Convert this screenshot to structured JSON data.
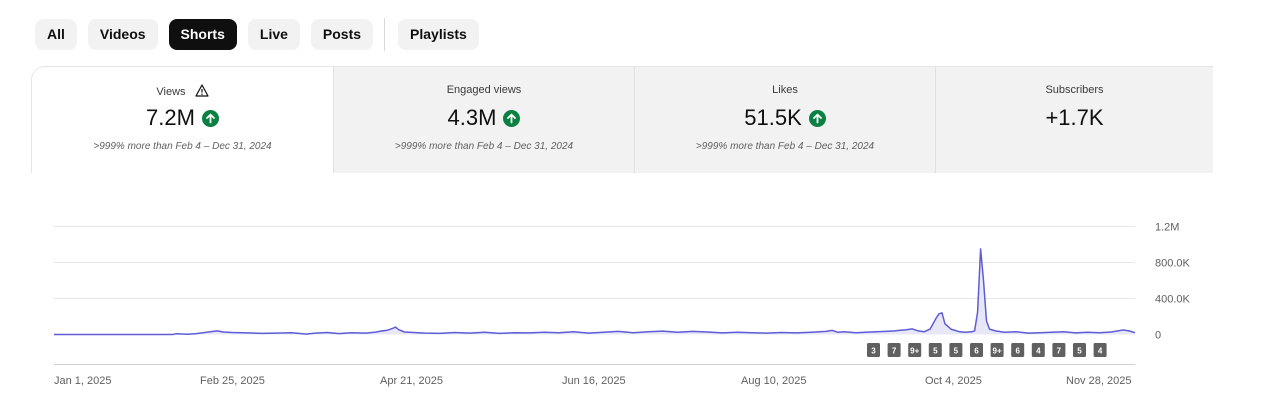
{
  "filters": {
    "chips": [
      "All",
      "Videos",
      "Shorts",
      "Live",
      "Posts",
      "Playlists"
    ],
    "active": "Shorts"
  },
  "metrics": [
    {
      "label": "Views",
      "value": "7.2M",
      "compare": ">999% more than Feb 4 – Dec 31, 2024",
      "trend": "up",
      "warning": true
    },
    {
      "label": "Engaged views",
      "value": "4.3M",
      "compare": ">999% more than Feb 4 – Dec 31, 2024",
      "trend": "up"
    },
    {
      "label": "Likes",
      "value": "51.5K",
      "compare": ">999% more than Feb 4 – Dec 31, 2024",
      "trend": "up"
    },
    {
      "label": "Subscribers",
      "value": "+1.7K",
      "compare": "",
      "trend": ""
    }
  ],
  "colors": {
    "line": "#5f5cd6",
    "area": "#e8e7f8",
    "up": "#0b8043"
  },
  "chart_data": {
    "type": "area",
    "x_tick_labels": [
      "Jan 1, 2025",
      "Feb 25, 2025",
      "Apr 21, 2025",
      "Jun 16, 2025",
      "Aug 10, 2025",
      "Oct 4, 2025",
      "Nov 28, 2025"
    ],
    "y_tick_labels": [
      "0",
      "400.0K",
      "800.0K",
      "1.2M"
    ],
    "ylim": [
      0,
      1200000
    ],
    "grid": true,
    "series": [
      {
        "points": [
          [
            0,
            0
          ],
          [
            40,
            0
          ],
          [
            41,
            8000
          ],
          [
            45,
            3000
          ],
          [
            48,
            10000
          ],
          [
            52,
            28000
          ],
          [
            55,
            40000
          ],
          [
            57,
            28000
          ],
          [
            60,
            22000
          ],
          [
            65,
            18000
          ],
          [
            70,
            12000
          ],
          [
            75,
            15000
          ],
          [
            80,
            20000
          ],
          [
            85,
            5000
          ],
          [
            88,
            15000
          ],
          [
            92,
            22000
          ],
          [
            96,
            10000
          ],
          [
            100,
            20000
          ],
          [
            105,
            15000
          ],
          [
            108,
            24000
          ],
          [
            110,
            38000
          ],
          [
            112,
            45000
          ],
          [
            114,
            68000
          ],
          [
            115,
            82000
          ],
          [
            116,
            55000
          ],
          [
            118,
            28000
          ],
          [
            125,
            15000
          ],
          [
            130,
            12000
          ],
          [
            135,
            22000
          ],
          [
            140,
            15000
          ],
          [
            145,
            25000
          ],
          [
            150,
            12000
          ],
          [
            155,
            20000
          ],
          [
            160,
            18000
          ],
          [
            165,
            25000
          ],
          [
            170,
            20000
          ],
          [
            175,
            30000
          ],
          [
            180,
            15000
          ],
          [
            185,
            25000
          ],
          [
            190,
            35000
          ],
          [
            195,
            20000
          ],
          [
            200,
            30000
          ],
          [
            205,
            38000
          ],
          [
            210,
            25000
          ],
          [
            215,
            35000
          ],
          [
            220,
            28000
          ],
          [
            225,
            18000
          ],
          [
            230,
            25000
          ],
          [
            235,
            20000
          ],
          [
            240,
            15000
          ],
          [
            245,
            22000
          ],
          [
            250,
            18000
          ],
          [
            255,
            25000
          ],
          [
            260,
            35000
          ],
          [
            262,
            45000
          ],
          [
            264,
            25000
          ],
          [
            266,
            30000
          ],
          [
            270,
            20000
          ],
          [
            275,
            28000
          ],
          [
            280,
            35000
          ],
          [
            283,
            40000
          ],
          [
            285,
            48000
          ],
          [
            287,
            52000
          ],
          [
            289,
            62000
          ],
          [
            291,
            40000
          ],
          [
            293,
            30000
          ],
          [
            295,
            60000
          ],
          [
            297,
            180000
          ],
          [
            298,
            230000
          ],
          [
            299,
            240000
          ],
          [
            300,
            120000
          ],
          [
            302,
            60000
          ],
          [
            305,
            30000
          ],
          [
            307,
            25000
          ],
          [
            309,
            30000
          ],
          [
            310,
            40000
          ],
          [
            311,
            250000
          ],
          [
            312,
            950000
          ],
          [
            313,
            600000
          ],
          [
            314,
            150000
          ],
          [
            315,
            60000
          ],
          [
            317,
            40000
          ],
          [
            320,
            25000
          ],
          [
            324,
            30000
          ],
          [
            328,
            15000
          ],
          [
            332,
            20000
          ],
          [
            336,
            25000
          ],
          [
            340,
            30000
          ],
          [
            344,
            18000
          ],
          [
            348,
            25000
          ],
          [
            352,
            20000
          ],
          [
            356,
            28000
          ],
          [
            360,
            50000
          ],
          [
            362,
            40000
          ],
          [
            364,
            20000
          ]
        ]
      }
    ],
    "annotations": [
      "3",
      "7",
      "9+",
      "5",
      "5",
      "6",
      "9+",
      "6",
      "4",
      "7",
      "5",
      "4"
    ]
  }
}
